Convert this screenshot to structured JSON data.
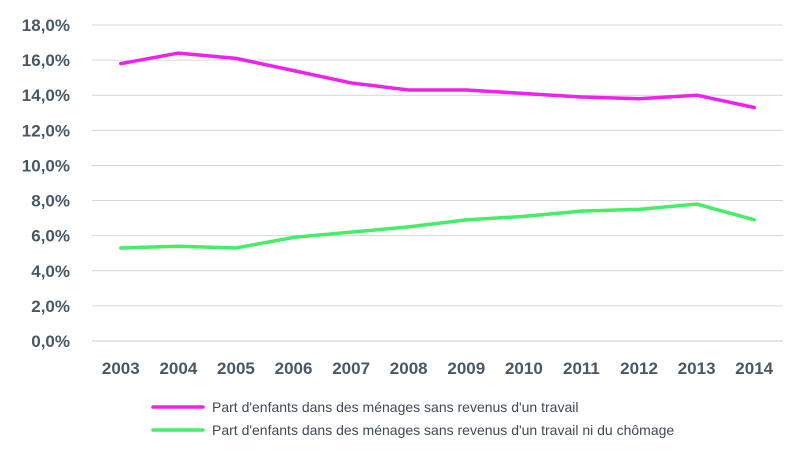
{
  "chart_data": {
    "type": "line",
    "categories": [
      "2003",
      "2004",
      "2005",
      "2006",
      "2007",
      "2008",
      "2009",
      "2010",
      "2011",
      "2012",
      "2013",
      "2014"
    ],
    "ylim": [
      0,
      18
    ],
    "ytick_values": [
      0,
      2,
      4,
      6,
      8,
      10,
      12,
      14,
      16,
      18
    ],
    "ytick_labels": [
      "0,0%",
      "2,0%",
      "4,0%",
      "6,0%",
      "8,0%",
      "10,0%",
      "12,0%",
      "14,0%",
      "16,0%",
      "18,0%"
    ],
    "grid": true,
    "legend_position": "bottom",
    "series": [
      {
        "name": "Part d'enfants dans des ménages sans revenus d'un travail",
        "color": "#ee22ee",
        "values": [
          15.8,
          16.4,
          16.1,
          15.4,
          14.7,
          14.3,
          14.3,
          14.1,
          13.9,
          13.8,
          14.0,
          13.3
        ]
      },
      {
        "name": "Part d'enfants dans des ménages sans revenus d'un travail ni du chômage",
        "color": "#44ee66",
        "values": [
          5.3,
          5.4,
          5.3,
          5.9,
          6.2,
          6.5,
          6.9,
          7.1,
          7.4,
          7.5,
          7.8,
          6.9
        ]
      }
    ]
  }
}
